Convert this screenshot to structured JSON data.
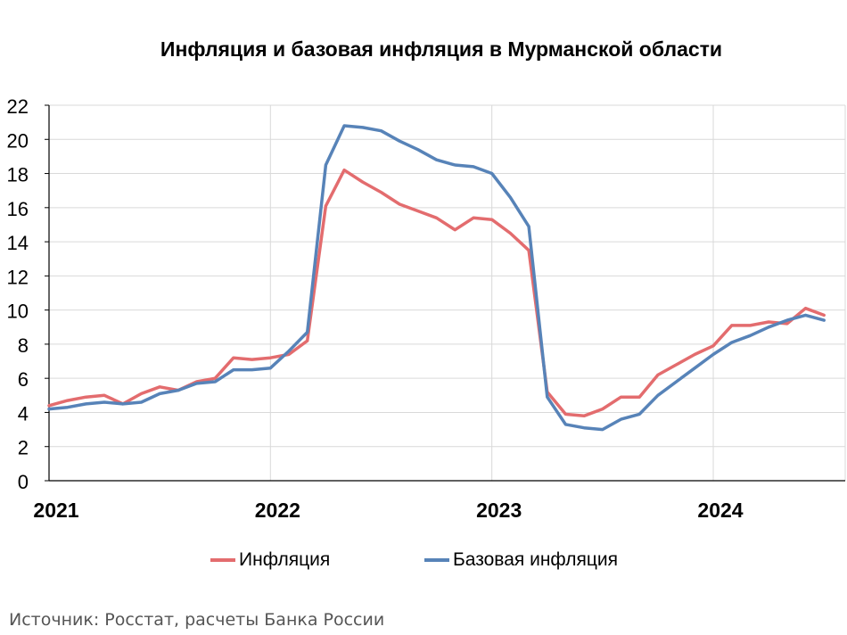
{
  "title": "Инфляция и базовая инфляция в Мурманской области",
  "source": "Источник: Росстат, расчеты Банка России",
  "chart_data": {
    "type": "line",
    "title": "Инфляция и базовая инфляция в Мурманской области",
    "xlabel": "",
    "ylabel": "",
    "ylim": [
      0,
      22
    ],
    "yticks": [
      "0",
      "2",
      "4",
      "6",
      "8",
      "10",
      "12",
      "14",
      "16",
      "18",
      "20",
      "22"
    ],
    "xticks": [
      "2021",
      "2022",
      "2023",
      "2024"
    ],
    "grid": true,
    "legend_position": "bottom",
    "x": [
      "2021-01",
      "2021-02",
      "2021-03",
      "2021-04",
      "2021-05",
      "2021-06",
      "2021-07",
      "2021-08",
      "2021-09",
      "2021-10",
      "2021-11",
      "2021-12",
      "2022-01",
      "2022-02",
      "2022-03",
      "2022-04",
      "2022-05",
      "2022-06",
      "2022-07",
      "2022-08",
      "2022-09",
      "2022-10",
      "2022-11",
      "2022-12",
      "2023-01",
      "2023-02",
      "2023-03",
      "2023-04",
      "2023-05",
      "2023-06",
      "2023-07",
      "2023-08",
      "2023-09",
      "2023-10",
      "2023-11",
      "2023-12",
      "2024-01",
      "2024-02",
      "2024-03",
      "2024-04",
      "2024-05",
      "2024-06",
      "2024-07"
    ],
    "series": [
      {
        "name": "Инфляция",
        "color": "#e36c6e",
        "values": [
          4.4,
          4.7,
          4.9,
          5.0,
          4.5,
          5.1,
          5.5,
          5.3,
          5.8,
          6.0,
          7.2,
          7.1,
          7.2,
          7.4,
          8.2,
          16.1,
          18.2,
          17.5,
          16.9,
          16.2,
          15.8,
          15.4,
          14.7,
          15.4,
          15.3,
          14.5,
          13.5,
          5.2,
          3.9,
          3.8,
          4.2,
          4.9,
          4.9,
          6.2,
          6.8,
          7.4,
          7.9,
          9.1,
          9.1,
          9.3,
          9.2,
          10.1,
          9.7
        ]
      },
      {
        "name": "Базовая инфляция",
        "color": "#5783b8",
        "values": [
          4.2,
          4.3,
          4.5,
          4.6,
          4.5,
          4.6,
          5.1,
          5.3,
          5.7,
          5.8,
          6.5,
          6.5,
          6.6,
          7.6,
          8.7,
          18.5,
          20.8,
          20.7,
          20.5,
          19.9,
          19.4,
          18.8,
          18.5,
          18.4,
          18.0,
          16.6,
          14.9,
          4.9,
          3.3,
          3.1,
          3.0,
          3.6,
          3.9,
          5.0,
          5.8,
          6.6,
          7.4,
          8.1,
          8.5,
          9.0,
          9.4,
          9.7,
          9.4
        ]
      }
    ]
  }
}
